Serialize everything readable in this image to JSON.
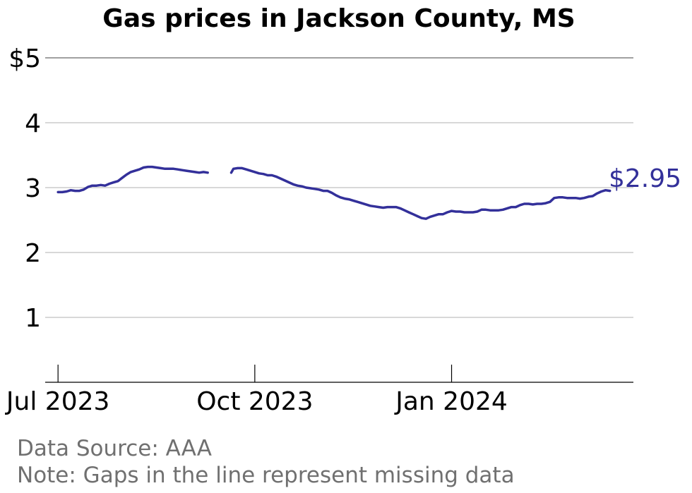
{
  "chart_data": {
    "type": "line",
    "title": "Gas prices in Jackson County, MS",
    "xlabel": "",
    "ylabel": "",
    "ylim": [
      0,
      5
    ],
    "xlim": [
      "2023-06-25",
      "2024-03-26"
    ],
    "y_ticks": [
      {
        "value": 1,
        "label": "1"
      },
      {
        "value": 2,
        "label": "2"
      },
      {
        "value": 3,
        "label": "3"
      },
      {
        "value": 4,
        "label": "4"
      },
      {
        "value": 5,
        "label": "$5"
      }
    ],
    "x_ticks": [
      {
        "date": "2023-07-01",
        "label": "Jul 2023"
      },
      {
        "date": "2023-10-01",
        "label": "Oct 2023"
      },
      {
        "date": "2024-01-01",
        "label": "Jan 2024"
      }
    ],
    "grid": true,
    "line_color": "#33309a",
    "end_label": "$2.95",
    "series": [
      {
        "segments": [
          [
            [
              "2023-07-01",
              2.93
            ],
            [
              "2023-07-03",
              2.93
            ],
            [
              "2023-07-05",
              2.94
            ],
            [
              "2023-07-07",
              2.96
            ],
            [
              "2023-07-09",
              2.95
            ],
            [
              "2023-07-11",
              2.95
            ],
            [
              "2023-07-13",
              2.97
            ],
            [
              "2023-07-15",
              3.01
            ],
            [
              "2023-07-17",
              3.03
            ],
            [
              "2023-07-19",
              3.03
            ],
            [
              "2023-07-21",
              3.04
            ],
            [
              "2023-07-23",
              3.03
            ],
            [
              "2023-07-25",
              3.06
            ],
            [
              "2023-07-27",
              3.08
            ],
            [
              "2023-07-29",
              3.1
            ],
            [
              "2023-07-31",
              3.15
            ],
            [
              "2023-08-02",
              3.2
            ],
            [
              "2023-08-04",
              3.24
            ],
            [
              "2023-08-06",
              3.26
            ],
            [
              "2023-08-08",
              3.28
            ],
            [
              "2023-08-10",
              3.31
            ],
            [
              "2023-08-12",
              3.32
            ],
            [
              "2023-08-14",
              3.32
            ],
            [
              "2023-08-16",
              3.31
            ],
            [
              "2023-08-18",
              3.3
            ],
            [
              "2023-08-20",
              3.29
            ],
            [
              "2023-08-22",
              3.29
            ],
            [
              "2023-08-24",
              3.29
            ],
            [
              "2023-08-26",
              3.28
            ],
            [
              "2023-08-28",
              3.27
            ],
            [
              "2023-08-30",
              3.26
            ],
            [
              "2023-09-01",
              3.25
            ],
            [
              "2023-09-03",
              3.24
            ],
            [
              "2023-09-05",
              3.23
            ],
            [
              "2023-09-07",
              3.24
            ],
            [
              "2023-09-09",
              3.23
            ]
          ],
          [
            [
              "2023-09-20",
              3.23
            ],
            [
              "2023-09-21",
              3.29
            ],
            [
              "2023-09-23",
              3.3
            ],
            [
              "2023-09-25",
              3.3
            ],
            [
              "2023-09-27",
              3.28
            ],
            [
              "2023-09-29",
              3.26
            ],
            [
              "2023-10-01",
              3.24
            ],
            [
              "2023-10-03",
              3.22
            ],
            [
              "2023-10-05",
              3.21
            ],
            [
              "2023-10-07",
              3.19
            ],
            [
              "2023-10-09",
              3.19
            ],
            [
              "2023-10-11",
              3.17
            ],
            [
              "2023-10-13",
              3.14
            ],
            [
              "2023-10-15",
              3.11
            ],
            [
              "2023-10-17",
              3.08
            ],
            [
              "2023-10-19",
              3.05
            ],
            [
              "2023-10-21",
              3.03
            ],
            [
              "2023-10-23",
              3.02
            ],
            [
              "2023-10-25",
              3.0
            ],
            [
              "2023-10-27",
              2.99
            ],
            [
              "2023-10-29",
              2.98
            ],
            [
              "2023-10-31",
              2.97
            ],
            [
              "2023-11-02",
              2.95
            ],
            [
              "2023-11-04",
              2.95
            ],
            [
              "2023-11-06",
              2.92
            ],
            [
              "2023-11-08",
              2.88
            ],
            [
              "2023-11-10",
              2.85
            ],
            [
              "2023-11-12",
              2.83
            ],
            [
              "2023-11-14",
              2.82
            ],
            [
              "2023-11-16",
              2.8
            ],
            [
              "2023-11-18",
              2.78
            ],
            [
              "2023-11-20",
              2.76
            ],
            [
              "2023-11-22",
              2.74
            ],
            [
              "2023-11-24",
              2.72
            ],
            [
              "2023-11-26",
              2.71
            ],
            [
              "2023-11-28",
              2.7
            ],
            [
              "2023-11-30",
              2.69
            ],
            [
              "2023-12-02",
              2.7
            ],
            [
              "2023-12-04",
              2.7
            ],
            [
              "2023-12-06",
              2.7
            ],
            [
              "2023-12-08",
              2.68
            ],
            [
              "2023-12-10",
              2.65
            ],
            [
              "2023-12-12",
              2.62
            ],
            [
              "2023-12-14",
              2.59
            ],
            [
              "2023-12-16",
              2.56
            ],
            [
              "2023-12-18",
              2.53
            ],
            [
              "2023-12-20",
              2.52
            ],
            [
              "2023-12-22",
              2.55
            ],
            [
              "2023-12-24",
              2.57
            ],
            [
              "2023-12-26",
              2.59
            ],
            [
              "2023-12-28",
              2.59
            ],
            [
              "2023-12-30",
              2.62
            ],
            [
              "2024-01-01",
              2.64
            ],
            [
              "2024-01-03",
              2.63
            ],
            [
              "2024-01-05",
              2.63
            ],
            [
              "2024-01-07",
              2.62
            ],
            [
              "2024-01-09",
              2.62
            ],
            [
              "2024-01-11",
              2.62
            ],
            [
              "2024-01-13",
              2.63
            ],
            [
              "2024-01-15",
              2.66
            ],
            [
              "2024-01-17",
              2.66
            ],
            [
              "2024-01-19",
              2.65
            ],
            [
              "2024-01-21",
              2.65
            ],
            [
              "2024-01-23",
              2.65
            ],
            [
              "2024-01-25",
              2.66
            ],
            [
              "2024-01-27",
              2.68
            ],
            [
              "2024-01-29",
              2.7
            ],
            [
              "2024-01-31",
              2.7
            ],
            [
              "2024-02-02",
              2.73
            ],
            [
              "2024-02-04",
              2.75
            ],
            [
              "2024-02-06",
              2.75
            ],
            [
              "2024-02-08",
              2.74
            ],
            [
              "2024-02-10",
              2.75
            ],
            [
              "2024-02-12",
              2.75
            ],
            [
              "2024-02-14",
              2.76
            ],
            [
              "2024-02-16",
              2.78
            ],
            [
              "2024-02-18",
              2.84
            ],
            [
              "2024-02-20",
              2.85
            ],
            [
              "2024-02-22",
              2.85
            ],
            [
              "2024-02-24",
              2.84
            ],
            [
              "2024-02-26",
              2.84
            ],
            [
              "2024-02-28",
              2.84
            ],
            [
              "2024-03-01",
              2.83
            ],
            [
              "2024-03-03",
              2.84
            ],
            [
              "2024-03-05",
              2.86
            ],
            [
              "2024-03-07",
              2.87
            ],
            [
              "2024-03-09",
              2.91
            ],
            [
              "2024-03-11",
              2.94
            ],
            [
              "2024-03-13",
              2.96
            ],
            [
              "2024-03-15",
              2.95
            ]
          ]
        ]
      }
    ]
  },
  "notes": {
    "source": "Data Source: AAA",
    "gaps": "Note: Gaps in the line represent missing data"
  }
}
